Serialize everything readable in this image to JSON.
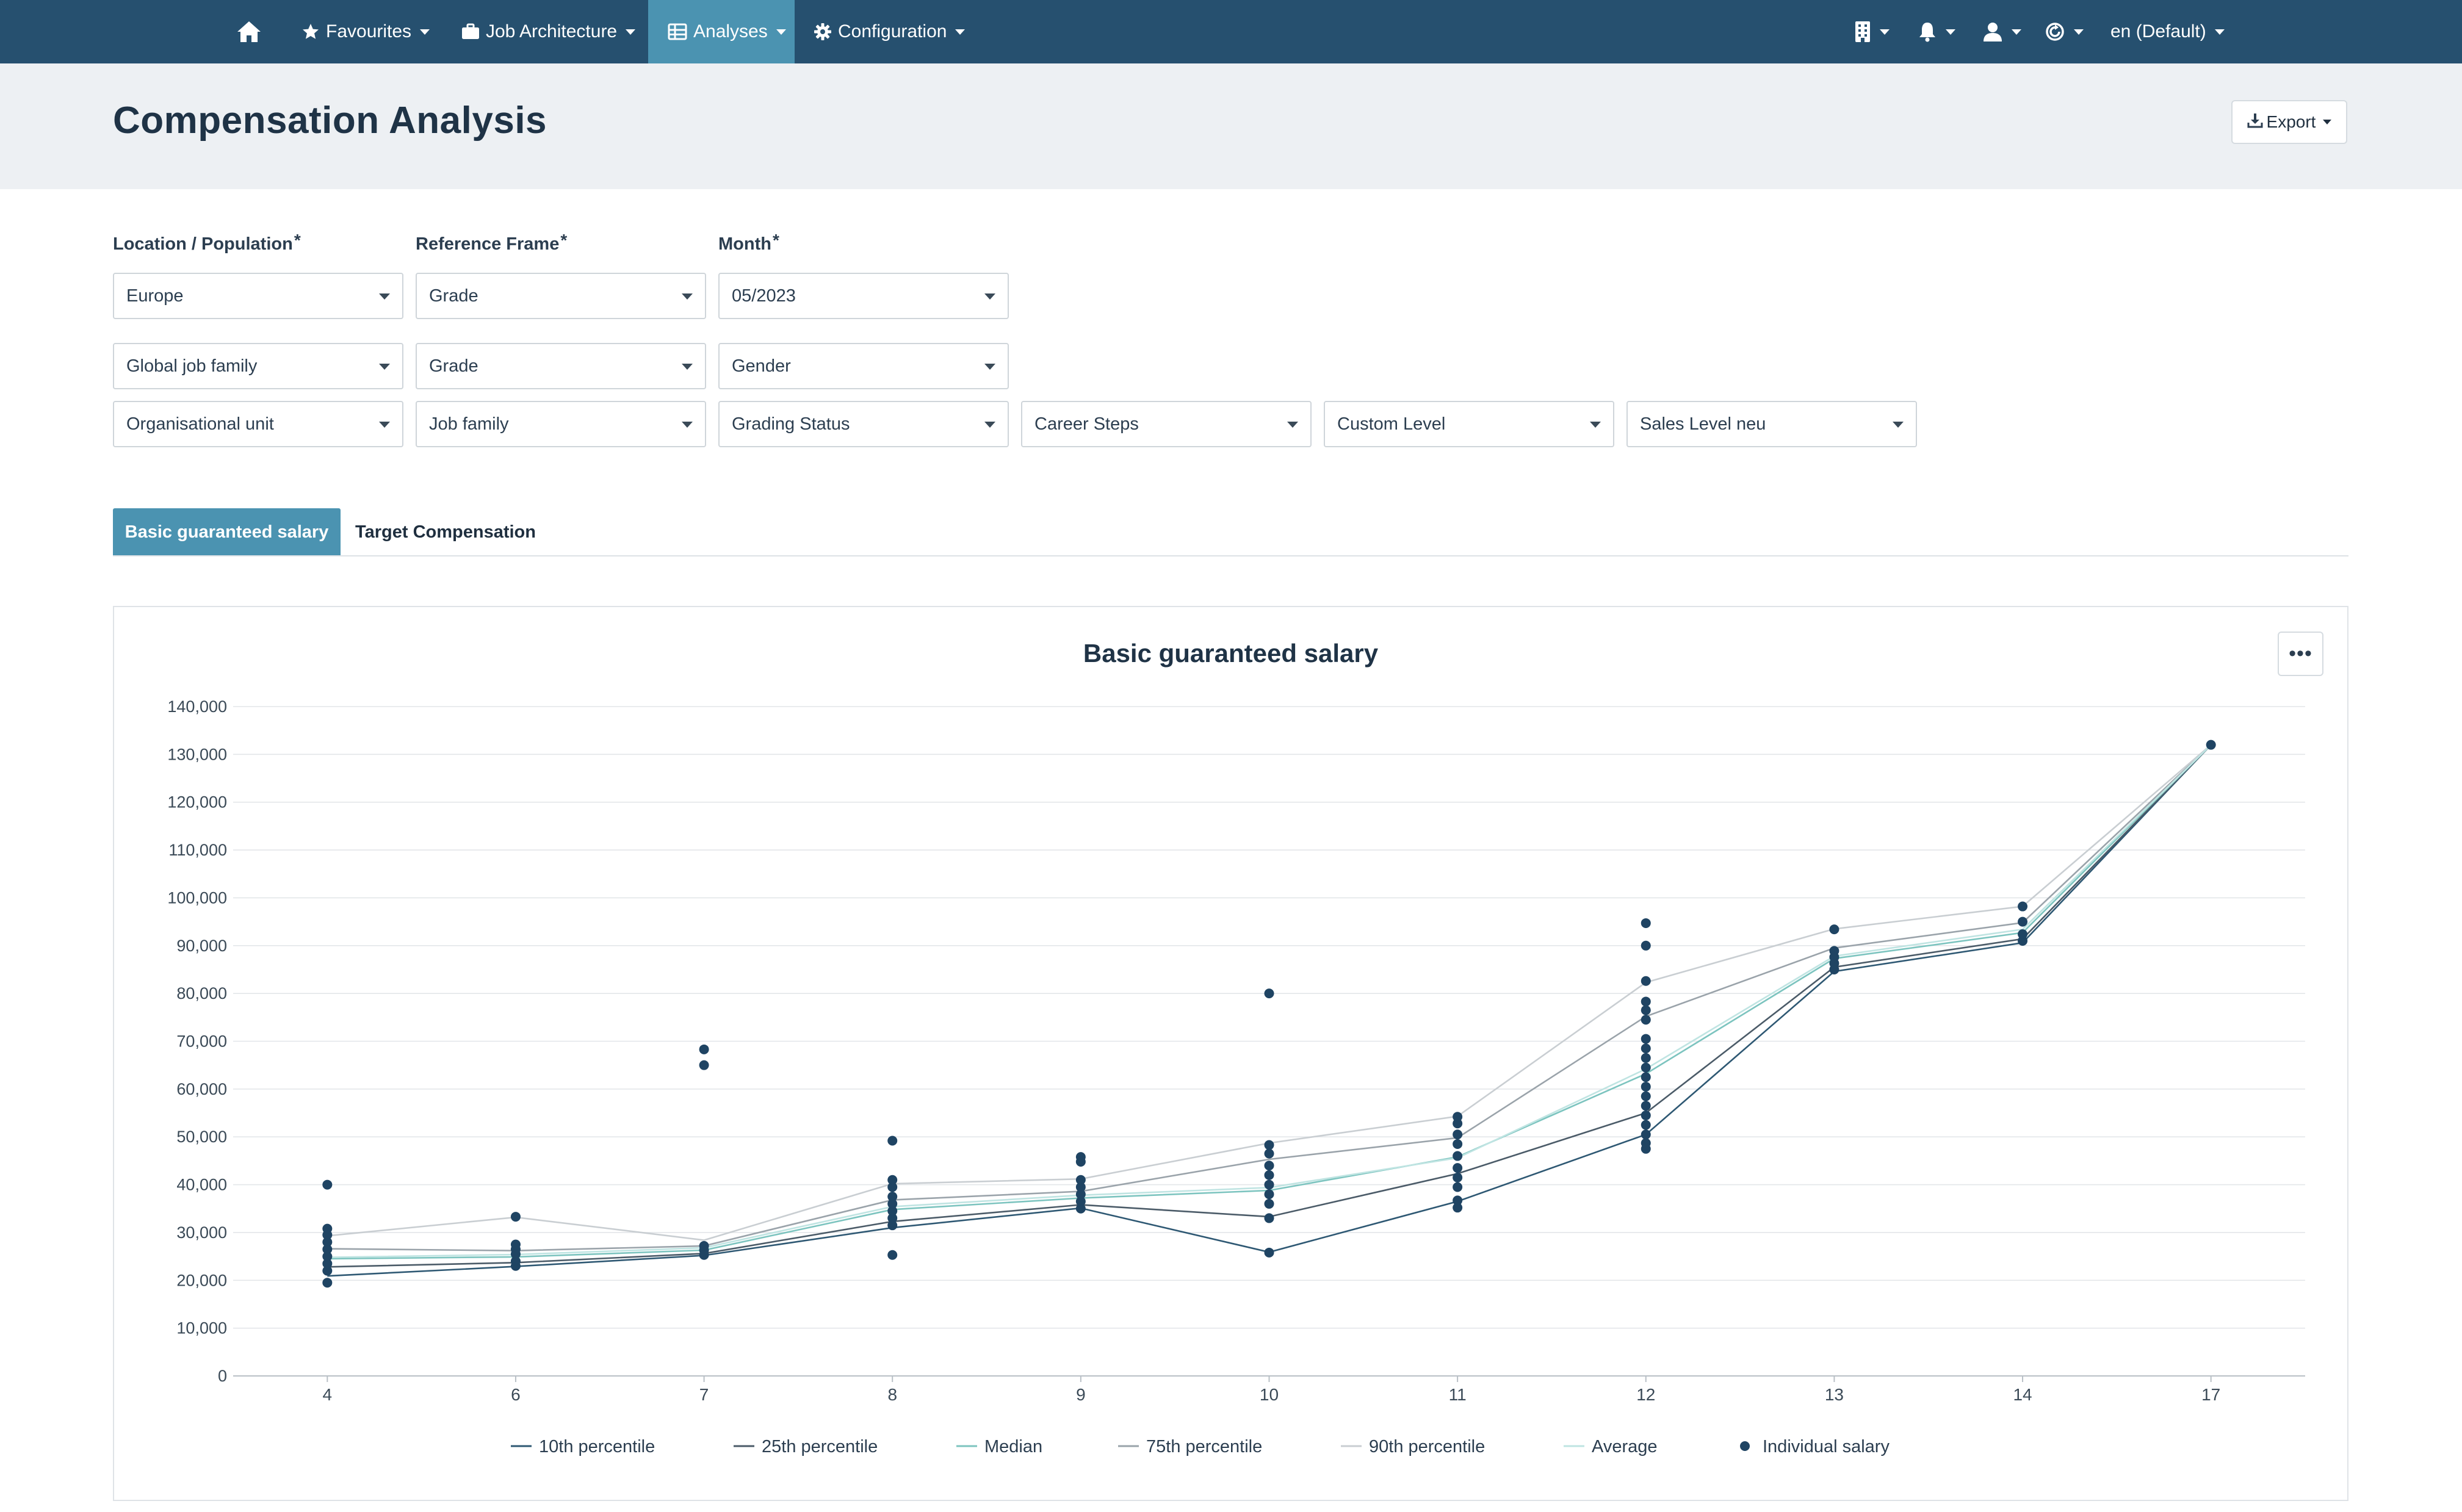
{
  "nav": {
    "home_icon": "home-icon",
    "items": [
      {
        "label": "Favourites",
        "icon": "star-icon"
      },
      {
        "label": "Job Architecture",
        "icon": "briefcase-icon"
      },
      {
        "label": "Analyses",
        "icon": "table-icon"
      },
      {
        "label": "Configuration",
        "icon": "gear-icon"
      }
    ],
    "right": {
      "building_icon": "building-icon",
      "bell_icon": "bell-icon",
      "user_icon": "user-icon",
      "refresh_icon": "refresh-icon",
      "language": "en (Default)"
    }
  },
  "header": {
    "title": "Compensation Analysis",
    "export_label": "Export"
  },
  "filters": {
    "labels": {
      "location": "Location / Population",
      "reference": "Reference Frame",
      "month": "Month",
      "required_mark": "*"
    },
    "location": "Europe",
    "reference": "Grade",
    "month": "05/2023",
    "row2": [
      "Global job family",
      "Grade",
      "Gender"
    ],
    "row3": [
      "Organisational unit",
      "Job family",
      "Grading Status",
      "Career Steps",
      "Custom Level",
      "Sales Level neu"
    ]
  },
  "tabs": [
    {
      "label": "Basic guaranteed salary",
      "active": true
    },
    {
      "label": "Target Compensation",
      "active": false
    }
  ],
  "chart_menu_label": "•••",
  "colors": {
    "nav_bg": "#26506f",
    "accent": "#4b93b1",
    "p10": "#2e5873",
    "p25": "#4b5b68",
    "median": "#7cc4bf",
    "p75": "#9aa3aa",
    "p90": "#c9ced2",
    "average": "#bfe4e2",
    "individual": "#1f4463"
  },
  "chart_data": {
    "type": "line",
    "title": "Basic guaranteed salary",
    "categories": [
      "4",
      "6",
      "7",
      "8",
      "9",
      "10",
      "11",
      "12",
      "13",
      "14",
      "17"
    ],
    "ylim": [
      0,
      140000
    ],
    "yticks": [
      0,
      10000,
      20000,
      30000,
      40000,
      50000,
      60000,
      70000,
      80000,
      90000,
      100000,
      110000,
      120000,
      130000,
      140000
    ],
    "ytick_labels": [
      "0",
      "10,000",
      "20,000",
      "30,000",
      "40,000",
      "50,000",
      "60,000",
      "70,000",
      "80,000",
      "90,000",
      "100,000",
      "110,000",
      "120,000",
      "130,000",
      "140,000"
    ],
    "grid": true,
    "legend_position": "bottom",
    "series": [
      {
        "name": "10th percentile",
        "values": [
          20900,
          22900,
          25200,
          31000,
          35100,
          25900,
          36500,
          50500,
          84600,
          90600,
          132000
        ]
      },
      {
        "name": "25th percentile",
        "values": [
          22800,
          23700,
          25600,
          32300,
          35800,
          33300,
          42300,
          55000,
          85500,
          91400,
          132000
        ]
      },
      {
        "name": "Median",
        "values": [
          24500,
          24900,
          26300,
          34800,
          37200,
          38800,
          45800,
          63200,
          87300,
          92700,
          132000
        ]
      },
      {
        "name": "75th percentile",
        "values": [
          26600,
          26200,
          27200,
          36800,
          38600,
          45300,
          49800,
          75200,
          89500,
          94800,
          132000
        ]
      },
      {
        "name": "90th percentile",
        "values": [
          29300,
          33200,
          28400,
          40200,
          41200,
          48700,
          54300,
          82300,
          93500,
          98200,
          132000
        ]
      },
      {
        "name": "Average",
        "values": [
          24800,
          25400,
          26800,
          35400,
          37800,
          39400,
          45600,
          64200,
          87800,
          93400,
          132000
        ]
      }
    ],
    "scatter_name": "Individual salary",
    "individual_salary": [
      {
        "x": "4",
        "values": [
          19500,
          22000,
          23500,
          25000,
          26500,
          28000,
          29500,
          30800,
          40000
        ]
      },
      {
        "x": "6",
        "values": [
          23000,
          24000,
          25500,
          26500,
          27500,
          33300
        ]
      },
      {
        "x": "7",
        "values": [
          25300,
          26300,
          27200,
          65000,
          68300
        ]
      },
      {
        "x": "8",
        "values": [
          25300,
          31500,
          33000,
          34500,
          36000,
          37500,
          39500,
          41000,
          49200
        ]
      },
      {
        "x": "9",
        "values": [
          35000,
          36500,
          38000,
          39500,
          41000,
          44800,
          45800
        ]
      },
      {
        "x": "10",
        "values": [
          25800,
          33000,
          36000,
          38000,
          40000,
          42000,
          44000,
          46500,
          48300,
          80000
        ]
      },
      {
        "x": "11",
        "values": [
          35200,
          36700,
          39500,
          41500,
          43500,
          46000,
          48500,
          50500,
          52800,
          54200
        ]
      },
      {
        "x": "12",
        "values": [
          47500,
          48700,
          50500,
          52500,
          54500,
          56500,
          58500,
          60500,
          62500,
          64500,
          66500,
          68500,
          70500,
          74500,
          76500,
          78300,
          82600,
          90000,
          94700
        ]
      },
      {
        "x": "13",
        "values": [
          85000,
          86300,
          87600,
          88900,
          93400
        ]
      },
      {
        "x": "14",
        "values": [
          91000,
          92400,
          95000,
          98200
        ]
      },
      {
        "x": "17",
        "values": [
          132000
        ]
      }
    ]
  }
}
